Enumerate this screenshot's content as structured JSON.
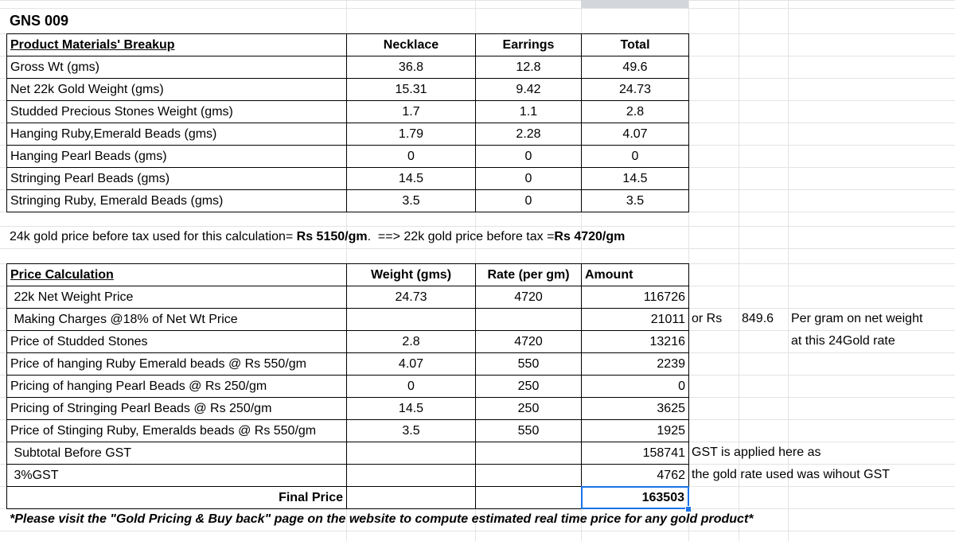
{
  "title": "GNS 009",
  "materials": {
    "header": [
      "Product Materials' Breakup",
      "Necklace",
      "Earrings",
      "Total"
    ],
    "rows": [
      [
        "Gross Wt (gms)",
        36.8,
        12.8,
        49.6
      ],
      [
        "Net 22k Gold Weight (gms)",
        15.31,
        9.42,
        24.73
      ],
      [
        "Studded Precious Stones Weight (gms)",
        1.7,
        1.1,
        2.8
      ],
      [
        "Hanging Ruby,Emerald Beads (gms)",
        1.79,
        2.28,
        4.07
      ],
      [
        "Hanging Pearl Beads (gms)",
        0,
        0,
        0
      ],
      [
        "Stringing Pearl Beads (gms)",
        14.5,
        0,
        14.5
      ],
      [
        "Stringing Ruby, Emerald Beads (gms)",
        3.5,
        0,
        3.5
      ]
    ]
  },
  "gold_note": [
    "24k gold price before tax used for this calculation= ",
    "Rs 5150/gm",
    ".  ==> 22k gold price before tax =",
    "Rs 4720/gm"
  ],
  "pricing": {
    "header": [
      "Price Calculation",
      "Weight (gms)",
      "Rate (per gm)",
      "Amount"
    ],
    "rows": [
      [
        " 22k Net Weight Price",
        24.73,
        4720,
        116726
      ],
      [
        " Making Charges @18% of Net Wt Price",
        null,
        null,
        21011
      ],
      [
        "Price of Studded Stones",
        2.8,
        4720,
        13216
      ],
      [
        "Price of hanging Ruby Emerald beads @ Rs 550/gm",
        4.07,
        550,
        2239
      ],
      [
        "Pricing of hanging Pearl Beads @ Rs 250/gm",
        0,
        250,
        0
      ],
      [
        "Pricing of Stringing Pearl Beads @ Rs 250/gm",
        14.5,
        250,
        3625
      ],
      [
        "Price of Stinging Ruby, Emeralds beads @ Rs 550/gm",
        3.5,
        550,
        1925
      ],
      [
        " Subtotal Before GST",
        null,
        null,
        158741
      ],
      [
        " 3%GST",
        null,
        null,
        4762
      ]
    ],
    "final_label": "Final Price",
    "final_value": 163503
  },
  "side_notes": {
    "or_rs": "or Rs",
    "per_gram_value": 849.6,
    "per_gram_text": "Per gram on net weight",
    "rate_text": "at this 24Gold rate",
    "gst_line1": "GST is applied here as",
    "gst_line2": "the gold rate used was wihout GST"
  },
  "footnote": "*Please visit the \"Gold Pricing & Buy back\" page on the website to compute estimated real time price for any gold product*"
}
